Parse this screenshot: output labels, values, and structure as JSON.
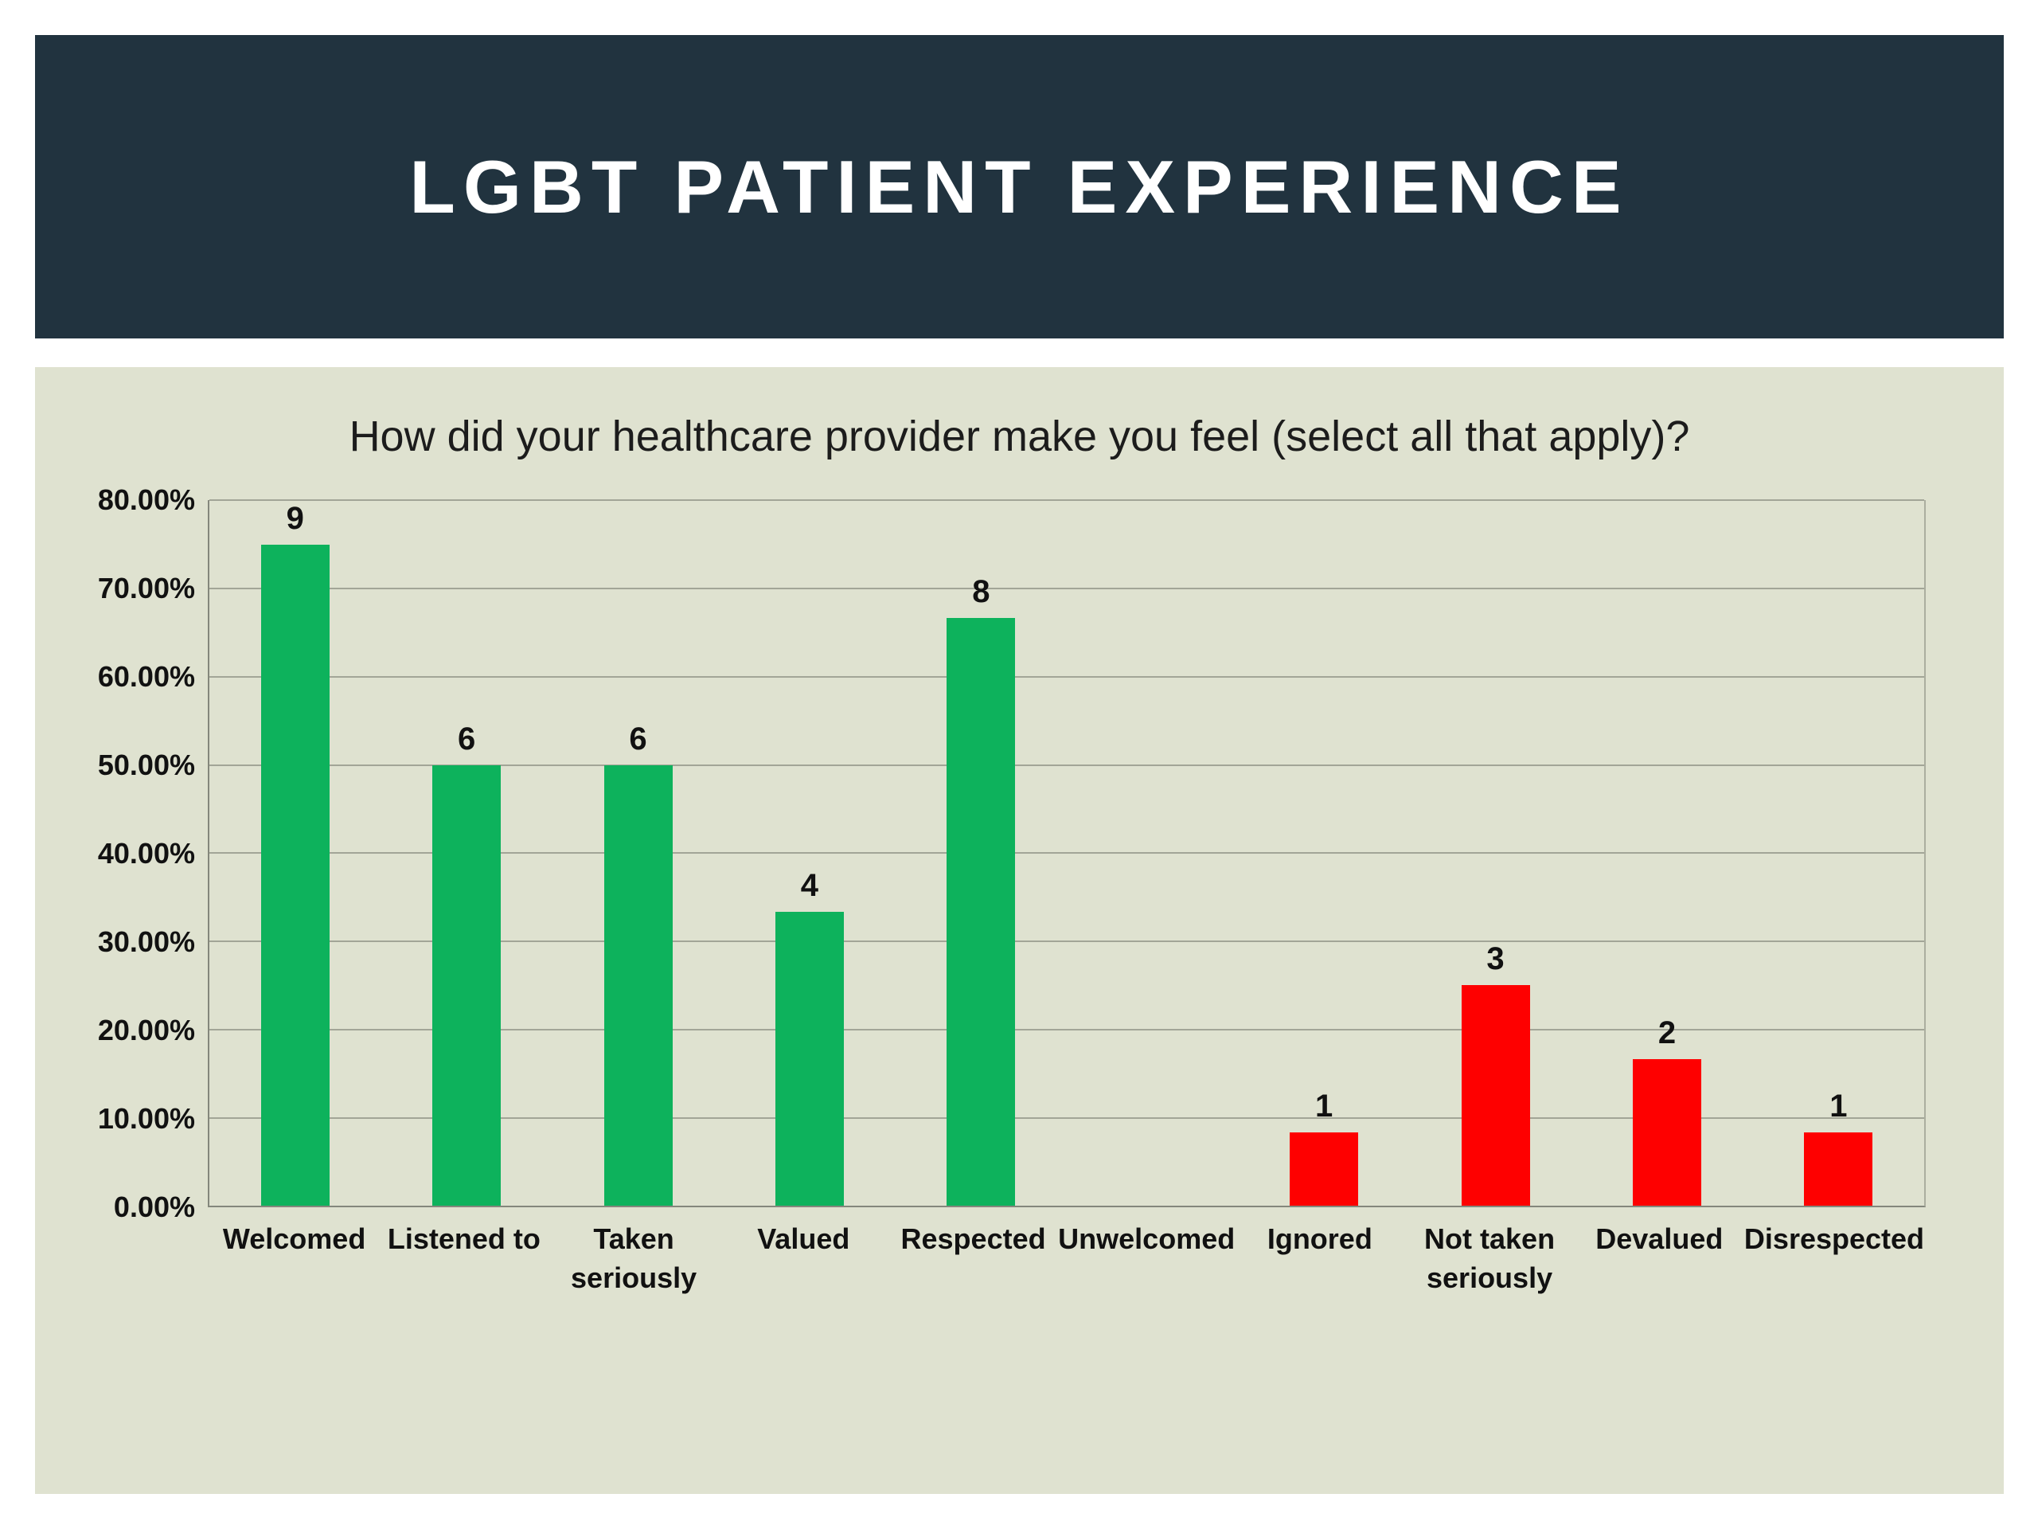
{
  "header": {
    "title": "LGBT PATIENT EXPERIENCE"
  },
  "colors": {
    "header_bg": "#21333F",
    "header_text": "#FFFFFF",
    "panel_bg": "#DFE2D0",
    "gridline": "#A2A597",
    "axis_line": "#84877C",
    "green": "#0DB25C",
    "red": "#FE0000"
  },
  "chart_data": {
    "type": "bar",
    "title": "How did your healthcare provider make you feel (select all that apply)?",
    "categories": [
      "Welcomed",
      "Listened to",
      "Taken seriously",
      "Valued",
      "Respected",
      "Unwelcomed",
      "Ignored",
      "Not taken seriously",
      "Devalued",
      "Disrespected"
    ],
    "tick_label_lines": [
      [
        "Welcomed"
      ],
      [
        "Listened to"
      ],
      [
        "Taken",
        "seriously"
      ],
      [
        "Valued"
      ],
      [
        "Respected"
      ],
      [
        "Unwelcomed"
      ],
      [
        "Ignored"
      ],
      [
        "Not taken",
        "seriously"
      ],
      [
        "Devalued"
      ],
      [
        "Disrespected"
      ]
    ],
    "values_percent": [
      75.0,
      50.0,
      50.0,
      33.33,
      66.67,
      0,
      8.33,
      25.0,
      16.67,
      8.33
    ],
    "data_labels": [
      "9",
      "6",
      "6",
      "4",
      "8",
      "",
      "1",
      "3",
      "2",
      "1"
    ],
    "bar_colors": [
      "green",
      "green",
      "green",
      "green",
      "green",
      "none",
      "red",
      "red",
      "red",
      "red"
    ],
    "xlabel": "",
    "ylabel": "",
    "ylim": [
      0,
      80
    ],
    "ytick_step": 10,
    "ytick_labels": [
      "0.00%",
      "10.00%",
      "20.00%",
      "30.00%",
      "40.00%",
      "50.00%",
      "60.00%",
      "70.00%",
      "80.00%"
    ],
    "grid": true,
    "legend_position": "none"
  }
}
